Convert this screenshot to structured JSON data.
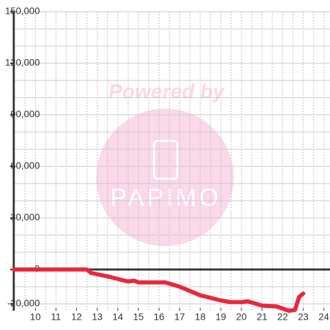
{
  "chart_data": {
    "type": "line",
    "watermark": {
      "top": "Powered by",
      "logo": "PAPIMO"
    },
    "xlim": [
      8.95,
      24.3
    ],
    "ylim": [
      -24000,
      150000
    ],
    "xticks": [
      10,
      11,
      12,
      13,
      14,
      15,
      16,
      17,
      18,
      19,
      20,
      21,
      22,
      23,
      24
    ],
    "yticks": [
      {
        "value": -20000,
        "label": "-20,000"
      },
      0,
      {
        "value": 30000,
        "label": "30,000"
      },
      {
        "value": 60000,
        "label": "60,000"
      },
      {
        "value": 90000,
        "label": "90,000"
      },
      {
        "value": 120000,
        "label": "120,000"
      },
      {
        "value": 150000,
        "label": "150,000"
      }
    ],
    "ygrid": [
      -20000,
      -10000,
      10000,
      20000,
      30000,
      40000,
      50000,
      60000,
      70000,
      80000,
      90000,
      100000,
      110000,
      120000,
      130000,
      140000,
      150000
    ],
    "xgrid": [
      9.5,
      10,
      10.5,
      11,
      11.5,
      12,
      12.5,
      13,
      13.5,
      14,
      14.5,
      15,
      15.5,
      16,
      16.5,
      17,
      17.5,
      18,
      18.5,
      19,
      19.5,
      20,
      20.5,
      21,
      21.5,
      22,
      22.5,
      23,
      23.5,
      24
    ],
    "grid": true,
    "series": [
      {
        "color": "#e8283c",
        "x": [
          8.95,
          12.5,
          12.7,
          13.5,
          14.5,
          14.8,
          15,
          16.3,
          17,
          18,
          19,
          19.5,
          20,
          20.3,
          21,
          21.7,
          22.3,
          22.6,
          22.8,
          23
        ],
        "values": [
          0,
          0,
          -2000,
          -4000,
          -7000,
          -6500,
          -7500,
          -7500,
          -10000,
          -15000,
          -18000,
          -19000,
          -19000,
          -18500,
          -21000,
          -21500,
          -24000,
          -23500,
          -16000,
          -14000
        ]
      }
    ]
  }
}
